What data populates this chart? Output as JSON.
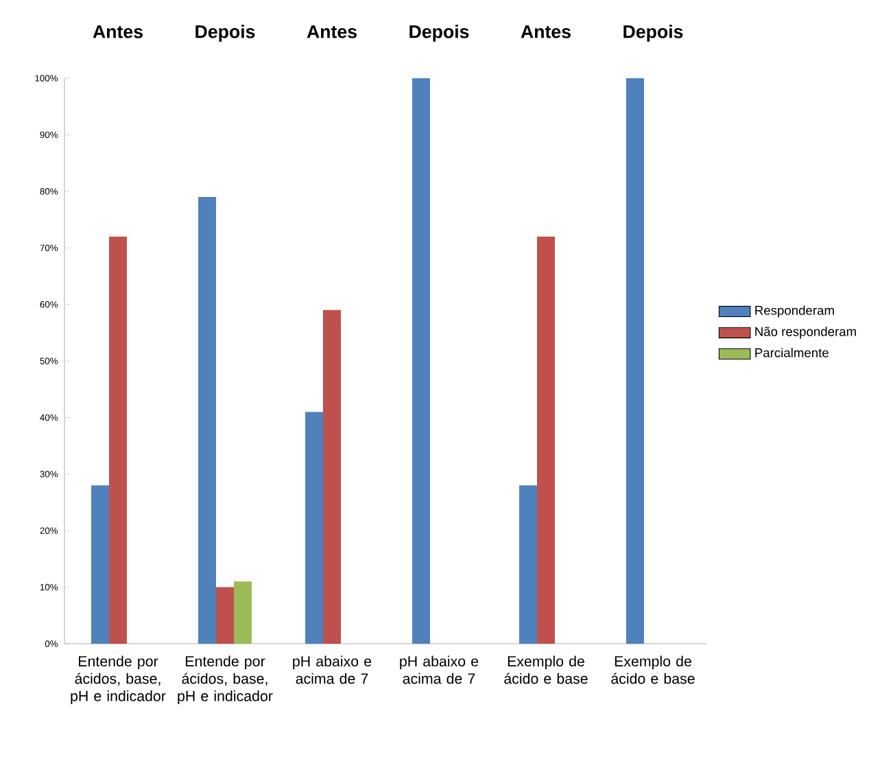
{
  "chart_data": {
    "type": "bar",
    "categories": [
      "Entende por ácidos, base, pH e indicador",
      "Entende por ácidos, base, pH e indicador",
      "pH abaixo e acima de 7",
      "pH abaixo e acima de 7",
      "Exemplo de ácido e base",
      "Exemplo de ácido e base"
    ],
    "series": [
      {
        "name": "Responderam",
        "color": "#4f81bd",
        "values": [
          28,
          79,
          41,
          100,
          28,
          100
        ]
      },
      {
        "name": "Não responderam",
        "color": "#c0504d",
        "values": [
          72,
          10,
          59,
          null,
          72,
          null
        ]
      },
      {
        "name": "Parcialmente",
        "color": "#9bbb59",
        "values": [
          null,
          11,
          null,
          null,
          null,
          null
        ]
      }
    ],
    "ylim": [
      0,
      100
    ],
    "yticks": [
      {
        "value": 0,
        "label": "0%"
      },
      {
        "value": 10,
        "label": "10%"
      },
      {
        "value": 20,
        "label": "20%"
      },
      {
        "value": 30,
        "label": "30%"
      },
      {
        "value": 40,
        "label": "40%"
      },
      {
        "value": 50,
        "label": "50%"
      },
      {
        "value": 60,
        "label": "60%"
      },
      {
        "value": 70,
        "label": "70%"
      },
      {
        "value": 80,
        "label": "80%"
      },
      {
        "value": 90,
        "label": "90%"
      },
      {
        "value": 100,
        "label": "100%"
      }
    ],
    "annotations": [
      "Antes",
      "Depois",
      "Antes",
      "Depois",
      "Antes",
      "Depois"
    ],
    "legend": "right",
    "grid": false
  }
}
